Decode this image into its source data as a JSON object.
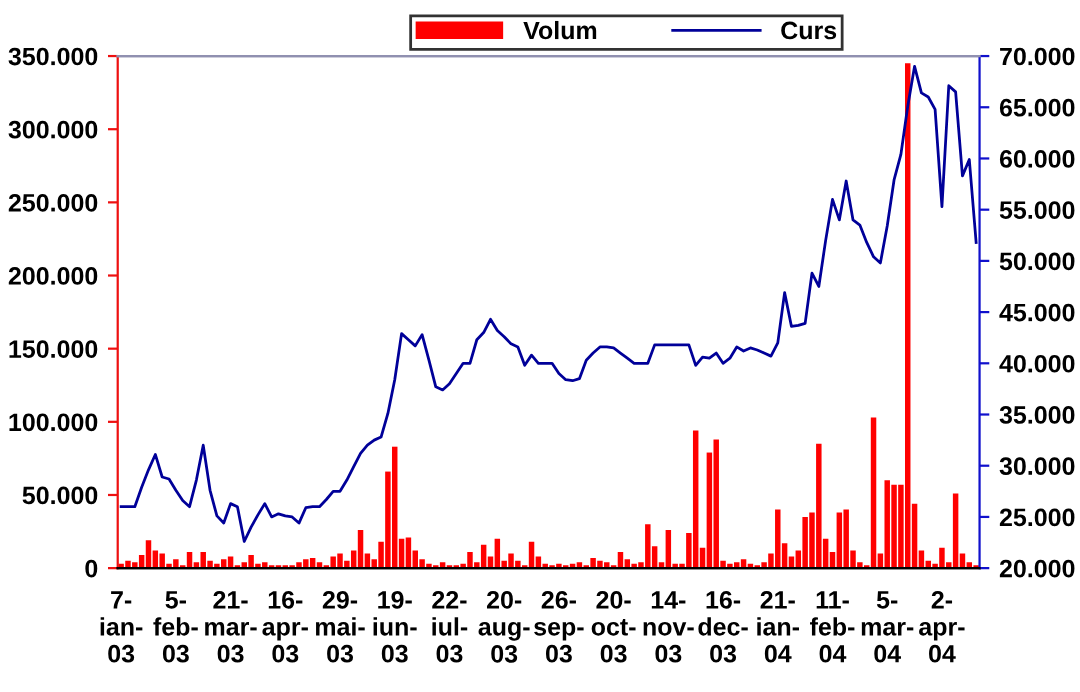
{
  "chart_data": {
    "type": "bar",
    "categories": [
      "7-\nian-\n03",
      null,
      null,
      null,
      null,
      null,
      null,
      null,
      "5-\nfeb-\n03",
      null,
      null,
      null,
      null,
      null,
      null,
      null,
      "21-\nmar-\n03",
      null,
      null,
      null,
      null,
      null,
      null,
      null,
      "16-\napr-\n03",
      null,
      null,
      null,
      null,
      null,
      null,
      null,
      "29-\nmai-\n03",
      null,
      null,
      null,
      null,
      null,
      null,
      null,
      "19-\niun-\n03",
      null,
      null,
      null,
      null,
      null,
      null,
      null,
      "22-\niul-\n03",
      null,
      null,
      null,
      null,
      null,
      null,
      null,
      "20-\naug-\n03",
      null,
      null,
      null,
      null,
      null,
      null,
      null,
      "26-\nsep-\n03",
      null,
      null,
      null,
      null,
      null,
      null,
      null,
      "20-\noct-\n03",
      null,
      null,
      null,
      null,
      null,
      null,
      null,
      "14-\nnov-\n03",
      null,
      null,
      null,
      null,
      null,
      null,
      null,
      "16-\ndec-\n03",
      null,
      null,
      null,
      null,
      null,
      null,
      null,
      "21-\nian-\n04",
      null,
      null,
      null,
      null,
      null,
      null,
      null,
      "11-\nfeb-\n04",
      null,
      null,
      null,
      null,
      null,
      null,
      null,
      "5-\nmar-\n04",
      null,
      null,
      null,
      null,
      null,
      null,
      null,
      "2-\napr-\n04",
      null,
      null,
      null,
      null,
      null
    ],
    "series": [
      {
        "name": "Volum",
        "color": "#ff0000",
        "values": [
          3000,
          5000,
          4000,
          9000,
          19000,
          12000,
          10000,
          3000,
          6000,
          2000,
          11000,
          4000,
          11000,
          5000,
          3000,
          6000,
          8000,
          2000,
          4000,
          9000,
          3000,
          4000,
          2000,
          2000,
          2000,
          2000,
          4000,
          6000,
          7000,
          4000,
          2000,
          8000,
          10000,
          5000,
          12000,
          26000,
          10000,
          6000,
          18000,
          66000,
          83000,
          20000,
          21000,
          12000,
          6000,
          3000,
          2000,
          4000,
          2000,
          2000,
          3000,
          11000,
          4000,
          16000,
          8000,
          20000,
          5000,
          10000,
          5000,
          2000,
          18000,
          8000,
          3000,
          2000,
          3000,
          2000,
          3000,
          4000,
          2000,
          7000,
          5000,
          4000,
          2000,
          11000,
          6000,
          3000,
          4000,
          30000,
          15000,
          4000,
          26000,
          3000,
          3000,
          24000,
          94000,
          14000,
          79000,
          88000,
          5000,
          3000,
          4000,
          6000,
          3000,
          2000,
          4000,
          10000,
          40000,
          17000,
          8000,
          12000,
          35000,
          38000,
          85000,
          20000,
          11000,
          38000,
          40000,
          12000,
          4000,
          2000,
          103000,
          10000,
          60000,
          57000,
          57000,
          345000,
          44000,
          12000,
          5000,
          3000,
          14000,
          4000,
          51000,
          10000,
          4000,
          2000
        ]
      },
      {
        "name": "Curs",
        "type": "line",
        "axis": "y2",
        "color": "#000099",
        "values": [
          26000,
          26000,
          26000,
          27900,
          29600,
          31100,
          28900,
          28700,
          27600,
          26600,
          26000,
          28600,
          32000,
          27600,
          25100,
          24400,
          26300,
          26000,
          22600,
          24000,
          25200,
          26300,
          25000,
          25300,
          25100,
          25000,
          24400,
          25900,
          26000,
          26000,
          26700,
          27500,
          27500,
          28600,
          29900,
          31200,
          32000,
          32500,
          32800,
          35100,
          38400,
          42900,
          42300,
          41700,
          42800,
          40300,
          37700,
          37400,
          38000,
          39000,
          40000,
          40000,
          42300,
          43000,
          44300,
          43200,
          42600,
          41900,
          41600,
          39800,
          40800,
          40000,
          40000,
          40000,
          39000,
          38400,
          38300,
          38500,
          40300,
          41000,
          41600,
          41600,
          41500,
          41000,
          40500,
          40000,
          40000,
          40000,
          41800,
          41800,
          41800,
          41800,
          41800,
          41800,
          39800,
          40600,
          40500,
          41000,
          40000,
          40500,
          41600,
          41200,
          41500,
          41300,
          41000,
          40700,
          42000,
          46900,
          43600,
          43700,
          43900,
          48800,
          47500,
          52000,
          56000,
          54000,
          57800,
          54000,
          53500,
          51800,
          50400,
          49800,
          53400,
          57900,
          60400,
          65100,
          69000,
          66400,
          66000,
          64800,
          55300,
          67100,
          66500,
          58300,
          59900,
          51800
        ]
      }
    ],
    "ylim": [
      0,
      350000
    ],
    "yticks": [
      0,
      {
        "value": 50000,
        "label": "50.000"
      },
      {
        "value": 100000,
        "label": "100.000"
      },
      {
        "value": 150000,
        "label": "150.000"
      },
      {
        "value": 200000,
        "label": "200.000"
      },
      {
        "value": 250000,
        "label": "250.000"
      },
      {
        "value": 300000,
        "label": "300.000"
      },
      {
        "value": 350000,
        "label": "350.000"
      }
    ],
    "y2lim": [
      20000,
      70000
    ],
    "y2ticks": [
      {
        "value": 20000,
        "label": "20.000"
      },
      {
        "value": 25000,
        "label": "25.000"
      },
      {
        "value": 30000,
        "label": "30.000"
      },
      {
        "value": 35000,
        "label": "35.000"
      },
      {
        "value": 40000,
        "label": "40.000"
      },
      {
        "value": 45000,
        "label": "45.000"
      },
      {
        "value": 50000,
        "label": "50.000"
      },
      {
        "value": 55000,
        "label": "55.000"
      },
      {
        "value": 60000,
        "label": "60.000"
      },
      {
        "value": 65000,
        "label": "65.000"
      },
      {
        "value": 70000,
        "label": "70.000"
      }
    ],
    "grid": false,
    "legend": "top"
  }
}
